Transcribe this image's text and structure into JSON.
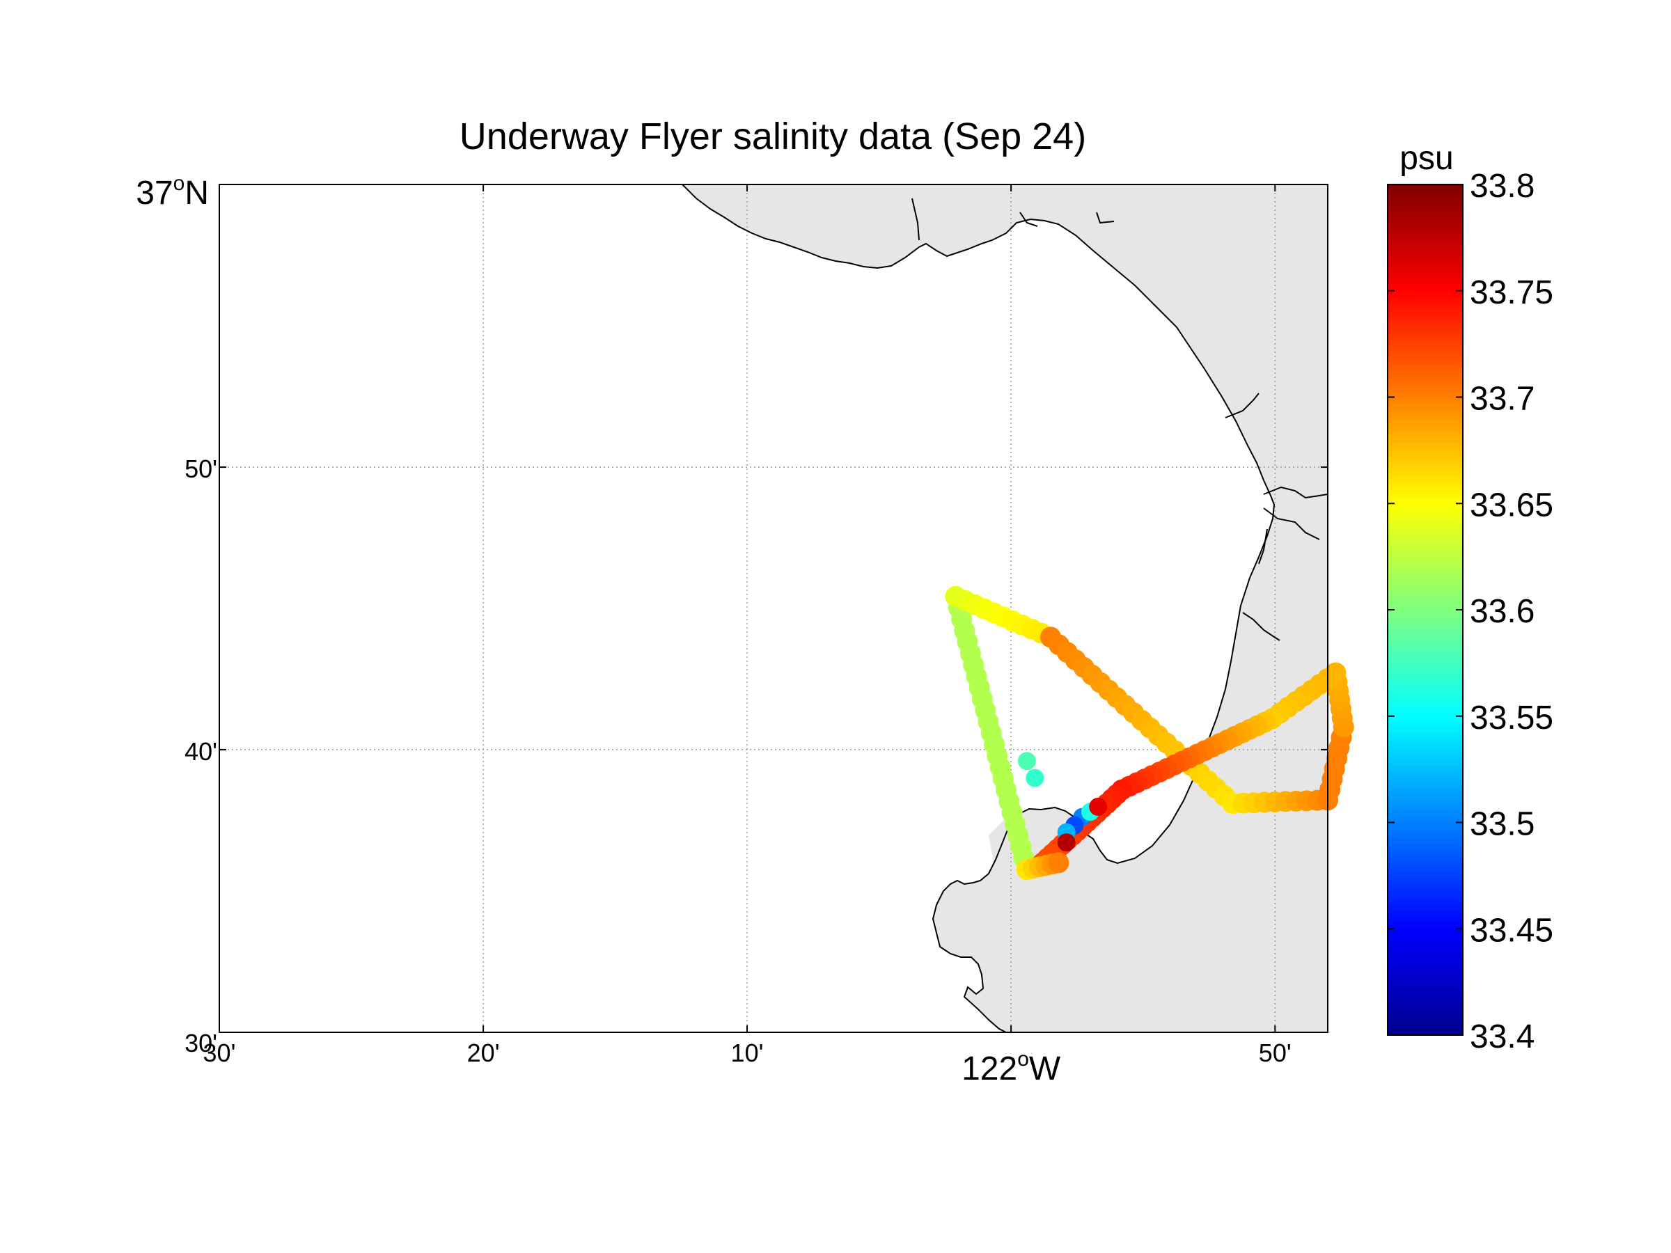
{
  "title": "Underway Flyer salinity data (Sep 24)",
  "map": {
    "lon_range": [
      -122.5,
      -121.8
    ],
    "lat_range": [
      36.5,
      37.0
    ],
    "y_ticks": [
      {
        "lat": 37.0,
        "base": "37",
        "sup": "o",
        "hemi": "N",
        "major": true
      },
      {
        "lat": 36.8333,
        "label": "50'"
      },
      {
        "lat": 36.6667,
        "label": "40'"
      },
      {
        "lat": 36.5,
        "label": "30'"
      }
    ],
    "x_ticks": [
      {
        "lon": -122.5,
        "label": "30'"
      },
      {
        "lon": -122.3333,
        "label": "20'"
      },
      {
        "lon": -122.1667,
        "label": "10'"
      },
      {
        "lon": -122.0,
        "base": "122",
        "sup": "o",
        "hemi": "W",
        "major": true
      },
      {
        "lon": -121.8333,
        "label": "50'"
      }
    ],
    "grid": true,
    "land_color": "#e6e6e6",
    "coastline_color": "#000000"
  },
  "colorbar": {
    "label": "psu",
    "min": 33.4,
    "max": 33.8,
    "ticks": [
      "33.8",
      "33.75",
      "33.7",
      "33.65",
      "33.6",
      "33.55",
      "33.5",
      "33.45",
      "33.4"
    ],
    "colormap": "jet"
  },
  "chart_data": {
    "type": "scatter",
    "x_axis": "longitude",
    "y_axis": "latitude",
    "color_variable": "salinity (psu)",
    "tracks": [
      {
        "from": [
          -122.035,
          36.757,
          33.62
        ],
        "to": [
          -121.99,
          36.596,
          33.62
        ],
        "steps": 24
      },
      {
        "from": [
          -122.035,
          36.757,
          33.64
        ],
        "to": [
          -121.975,
          36.733,
          33.66
        ],
        "steps": 10
      },
      {
        "from": [
          -121.975,
          36.733,
          33.7
        ],
        "to": [
          -121.86,
          36.635,
          33.66
        ],
        "steps": 22
      },
      {
        "from": [
          -121.86,
          36.635,
          33.66
        ],
        "to": [
          -121.8,
          36.637,
          33.7
        ],
        "steps": 9
      },
      {
        "from": [
          -121.8,
          36.637,
          33.7
        ],
        "to": [
          -121.79,
          36.68,
          33.7
        ],
        "steps": 7
      },
      {
        "from": [
          -121.79,
          36.68,
          33.69
        ],
        "to": [
          -121.795,
          36.712,
          33.68
        ],
        "steps": 6
      },
      {
        "from": [
          -121.795,
          36.712,
          33.68
        ],
        "to": [
          -121.835,
          36.685,
          33.67
        ],
        "steps": 8
      },
      {
        "from": [
          -121.835,
          36.685,
          33.67
        ],
        "to": [
          -121.93,
          36.643,
          33.74
        ],
        "steps": 20
      },
      {
        "from": [
          -121.93,
          36.643,
          33.74
        ],
        "to": [
          -121.98,
          36.6,
          33.72
        ],
        "steps": 16
      },
      {
        "from": [
          -121.99,
          36.596,
          33.66
        ],
        "to": [
          -121.97,
          36.6,
          33.7
        ],
        "steps": 5
      }
    ],
    "extra_points": [
      [
        -121.955,
        36.627,
        33.5
      ],
      [
        -121.96,
        36.622,
        33.48
      ],
      [
        -121.965,
        36.618,
        33.52
      ],
      [
        -121.95,
        36.63,
        33.56
      ],
      [
        -121.985,
        36.65,
        33.57
      ],
      [
        -121.99,
        36.66,
        33.58
      ],
      [
        -121.965,
        36.612,
        33.78
      ],
      [
        -121.945,
        36.633,
        33.76
      ]
    ]
  }
}
